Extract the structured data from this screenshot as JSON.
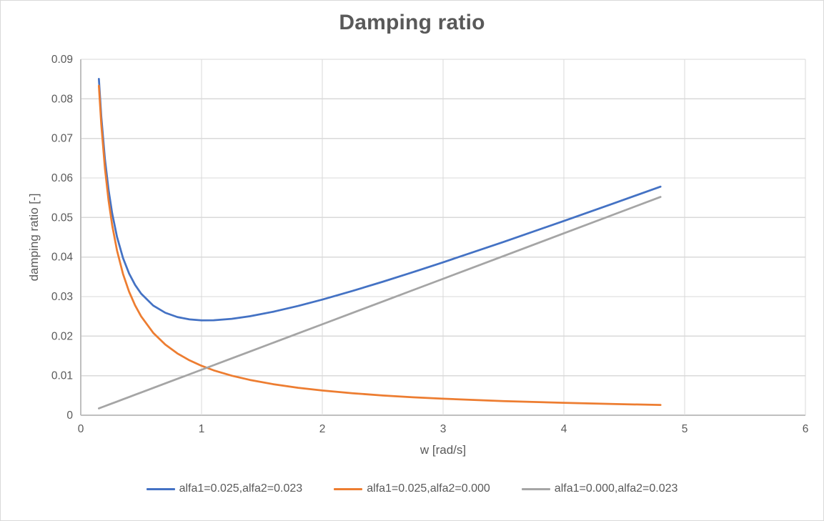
{
  "figure": {
    "border_color": "#d9d9d9",
    "background": "#ffffff",
    "text_color": "#595959",
    "gridline_color": "#d9d9d9",
    "axis_line_color": "#bfbfbf"
  },
  "chart_data": {
    "type": "line",
    "title": "Damping ratio",
    "xlabel": "w [rad/s]",
    "ylabel": "damping ratio [-]",
    "xlim": [
      0,
      6
    ],
    "ylim": [
      0,
      0.09
    ],
    "grid": true,
    "legend_position": "bottom",
    "x_ticks": [
      0,
      1,
      2,
      3,
      4,
      5,
      6
    ],
    "x_tick_labels": [
      "0",
      "1",
      "2",
      "3",
      "4",
      "5",
      "6"
    ],
    "y_ticks": [
      0,
      0.01,
      0.02,
      0.03,
      0.04,
      0.05,
      0.06,
      0.07,
      0.08,
      0.09
    ],
    "y_tick_labels": [
      "0",
      "0.01",
      "0.02",
      "0.03",
      "0.04",
      "0.05",
      "0.06",
      "0.07",
      "0.08",
      "0.09"
    ],
    "x": [
      0.15,
      0.17,
      0.2,
      0.23,
      0.26,
      0.3,
      0.35,
      0.4,
      0.45,
      0.5,
      0.6,
      0.7,
      0.8,
      0.9,
      1.0,
      1.1,
      1.25,
      1.4,
      1.6,
      1.8,
      2.0,
      2.25,
      2.5,
      2.75,
      3.0,
      3.5,
      4.0,
      4.4,
      4.8
    ],
    "series": [
      {
        "name": "alfa1=0.025,alfa2=0.023",
        "color": "#4472C4",
        "values": [
          0.08506,
          0.07549,
          0.0648,
          0.057,
          0.05107,
          0.04512,
          0.03974,
          0.03585,
          0.03295,
          0.03075,
          0.02773,
          0.02591,
          0.02483,
          0.02424,
          0.024,
          0.02401,
          0.02438,
          0.02503,
          0.02621,
          0.02764,
          0.02925,
          0.03143,
          0.03375,
          0.03617,
          0.03867,
          0.04382,
          0.04913,
          0.05344,
          0.0578
        ]
      },
      {
        "name": "alfa1=0.025,alfa2=0.000",
        "color": "#ED7D31",
        "values": [
          0.08333,
          0.07353,
          0.0625,
          0.05435,
          0.04808,
          0.04167,
          0.03571,
          0.03125,
          0.02778,
          0.025,
          0.02083,
          0.01786,
          0.01563,
          0.01389,
          0.0125,
          0.01136,
          0.01,
          0.00893,
          0.00781,
          0.00694,
          0.00625,
          0.00556,
          0.005,
          0.00455,
          0.00417,
          0.00357,
          0.00313,
          0.00284,
          0.0026
        ]
      },
      {
        "name": "alfa1=0.000,alfa2=0.023",
        "color": "#A5A5A5",
        "values": [
          0.00173,
          0.00196,
          0.0023,
          0.00265,
          0.00299,
          0.00345,
          0.00403,
          0.0046,
          0.00518,
          0.00575,
          0.0069,
          0.00805,
          0.0092,
          0.01035,
          0.0115,
          0.01265,
          0.01438,
          0.0161,
          0.0184,
          0.0207,
          0.023,
          0.02588,
          0.02875,
          0.03163,
          0.0345,
          0.04025,
          0.046,
          0.0506,
          0.0552
        ]
      }
    ]
  }
}
